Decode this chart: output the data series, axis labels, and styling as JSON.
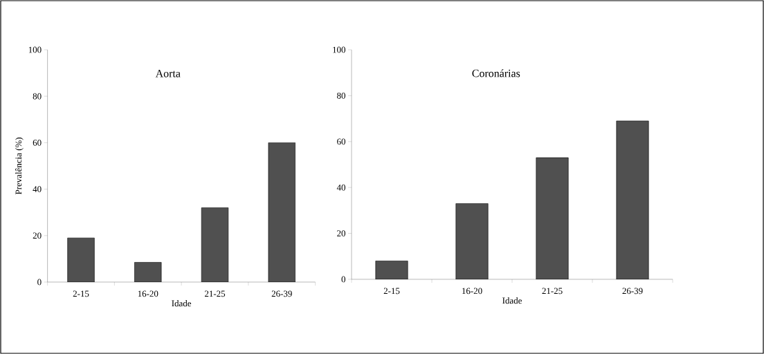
{
  "chart_data": [
    {
      "type": "bar",
      "title": "Aorta",
      "xlabel": "Idade",
      "ylabel": "Prevalência (%)",
      "categories": [
        "2-15",
        "16-20",
        "21-25",
        "26-39"
      ],
      "values": [
        19,
        8.5,
        32,
        60
      ],
      "color": "#505050",
      "ylim": [
        0,
        100
      ],
      "yticks": [
        0,
        20,
        40,
        60,
        80,
        100
      ]
    },
    {
      "type": "bar",
      "title": "Coronárias",
      "xlabel": "Idade",
      "categories": [
        "2-15",
        "16-20",
        "21-25",
        "26-39"
      ],
      "values": [
        8,
        33,
        53,
        69
      ],
      "color": "#505050",
      "ylim": [
        0,
        100
      ],
      "yticks": [
        0,
        20,
        40,
        60,
        80,
        100
      ]
    }
  ]
}
